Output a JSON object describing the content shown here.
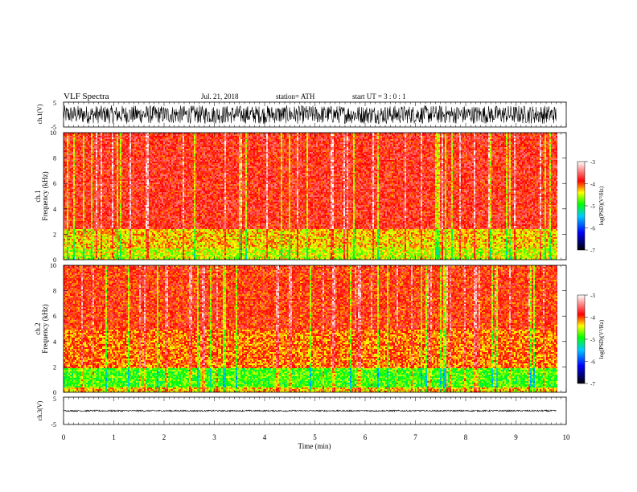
{
  "header": {
    "title": "VLF  Spectra",
    "date": "Jul.  21,  2018",
    "station": "station= ATH",
    "start": "start  UT  =    3  : 0   : 1"
  },
  "colors": {
    "spectrum_scale": [
      "#000000",
      "#0000ff",
      "#00c8ff",
      "#00ff00",
      "#ffff00",
      "#ff0000",
      "#ffffff"
    ]
  },
  "chart_data": [
    {
      "type": "line",
      "panel": "ch1-waveform",
      "ylabel": "ch.1(V)",
      "x_range": [
        0,
        9.8
      ],
      "ylim": [
        -5,
        5
      ],
      "y_ticks": [
        "5",
        "-5"
      ],
      "series": [
        {
          "amplitude_V": 4.2,
          "description": "dense broadband waveform"
        }
      ]
    },
    {
      "type": "heatmap",
      "panel": "ch1-spectrogram",
      "ylabel": "ch.1\nFrequency  (kHz)",
      "y_ticks": [
        "0",
        "2",
        "4",
        "6",
        "8",
        "10"
      ],
      "ylim": [
        0,
        10
      ],
      "x_range": [
        0,
        9.8
      ],
      "colorbar": {
        "label": "log(PSD)(V²/Hz)",
        "ticks": [
          "-3",
          "-4",
          "-5",
          "-6",
          "-7"
        ],
        "range": [
          -7,
          -3
        ]
      },
      "bands": [
        {
          "f_low": 0,
          "f_high": 1.0,
          "log_psd": -4.5
        },
        {
          "f_low": 1.0,
          "f_high": 2.5,
          "log_psd": -4.3
        },
        {
          "f_low": 2.5,
          "f_high": 10,
          "log_psd": -3.8
        }
      ]
    },
    {
      "type": "heatmap",
      "panel": "ch2-spectrogram",
      "ylabel": "ch.2\nFrequency  (kHz)",
      "y_ticks": [
        "0",
        "2",
        "4",
        "6",
        "8",
        "10"
      ],
      "ylim": [
        0,
        10
      ],
      "x_range": [
        0,
        9.8
      ],
      "colorbar": {
        "label": "log(PSD)(V²/Hz)",
        "ticks": [
          "-3",
          "-4",
          "-5",
          "-6",
          "-7"
        ],
        "range": [
          -7,
          -3
        ]
      },
      "bands": [
        {
          "f_low": 0,
          "f_high": 0.5,
          "log_psd": -4.3
        },
        {
          "f_low": 0.5,
          "f_high": 2.0,
          "log_psd": -4.8
        },
        {
          "f_low": 2.0,
          "f_high": 5.0,
          "log_psd": -4.1
        },
        {
          "f_low": 5.0,
          "f_high": 10,
          "log_psd": -3.9
        }
      ]
    },
    {
      "type": "line",
      "panel": "ch3-waveform",
      "ylabel": "ch.3(V)",
      "x_range": [
        0,
        9.8
      ],
      "ylim": [
        -5,
        5
      ],
      "y_ticks": [
        "5",
        "-5"
      ],
      "series": [
        {
          "amplitude_V": 0.3,
          "description": "flat waveform near 0 V"
        }
      ]
    }
  ],
  "time_axis": {
    "xlabel": "Time  (min)",
    "xlim": [
      0,
      10
    ],
    "ticks": [
      "0",
      "1",
      "2",
      "3",
      "4",
      "5",
      "6",
      "7",
      "8",
      "9",
      "10"
    ]
  }
}
